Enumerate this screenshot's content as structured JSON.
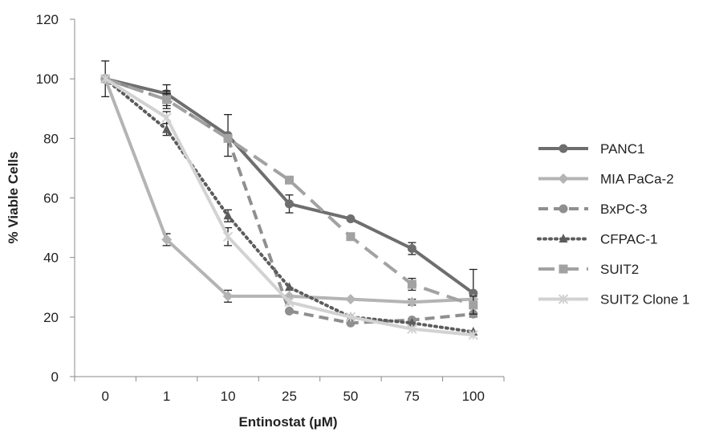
{
  "chart_data": {
    "type": "line",
    "categories": [
      "0",
      "1",
      "10",
      "25",
      "50",
      "75",
      "100"
    ],
    "xlabel": "Entinostat (µM)",
    "ylabel": "% Viable Cells",
    "ylim": [
      0,
      120
    ],
    "yticks": [
      0,
      20,
      40,
      60,
      80,
      100,
      120
    ],
    "legend_position": "right",
    "series": [
      {
        "name": "PANC1",
        "values": [
          100,
          95,
          81,
          58,
          53,
          43,
          28
        ],
        "errors": [
          6,
          3,
          7,
          3,
          0,
          2,
          8
        ],
        "color": "#6e6e6e",
        "dash": "solid",
        "marker": "circle"
      },
      {
        "name": "MIA PaCa-2",
        "values": [
          100,
          46,
          27,
          27,
          26,
          25,
          26
        ],
        "errors": [
          0,
          2,
          2,
          0,
          0,
          1,
          0
        ],
        "color": "#b4b4b4",
        "dash": "solid",
        "marker": "diamond"
      },
      {
        "name": "BxPC-3",
        "values": [
          100,
          93,
          80,
          22,
          18,
          19,
          21
        ],
        "errors": [
          0,
          3,
          0,
          0,
          0,
          0,
          0
        ],
        "color": "#8f8f8f",
        "dash": "dashed",
        "marker": "circle"
      },
      {
        "name": "CFPAC-1",
        "values": [
          100,
          83,
          54,
          30,
          20,
          18,
          15
        ],
        "errors": [
          0,
          2,
          2,
          0,
          0,
          0,
          0
        ],
        "color": "#5c5c5c",
        "dash": "dotted",
        "marker": "triangle"
      },
      {
        "name": "SUIT2",
        "values": [
          100,
          93,
          80,
          66,
          47,
          31,
          24
        ],
        "errors": [
          0,
          2,
          0,
          0,
          0,
          2,
          3
        ],
        "color": "#a2a2a2",
        "dash": "longdash",
        "marker": "square"
      },
      {
        "name": "SUIT2 Clone 1",
        "values": [
          100,
          87,
          47,
          25,
          20,
          16,
          14
        ],
        "errors": [
          0,
          2,
          3,
          0,
          0,
          0,
          0
        ],
        "color": "#d2d2d2",
        "dash": "solid",
        "marker": "star"
      }
    ]
  }
}
